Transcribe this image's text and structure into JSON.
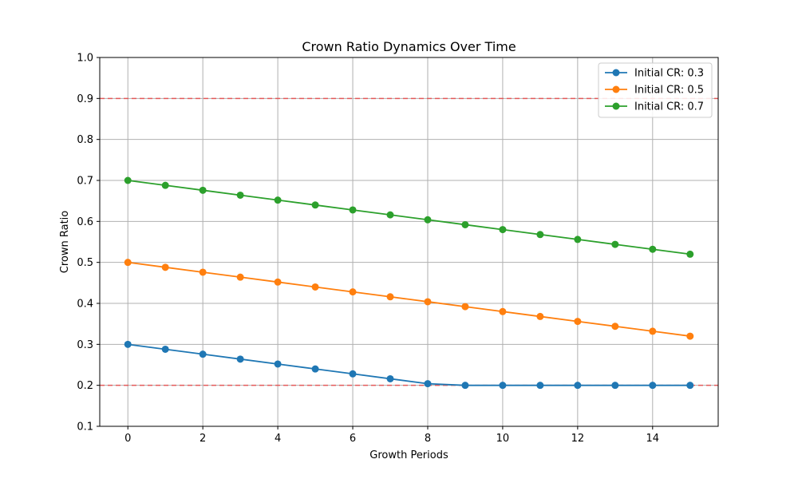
{
  "chart_data": {
    "type": "line",
    "title": "Crown Ratio Dynamics Over Time",
    "xlabel": "Growth Periods",
    "ylabel": "Crown Ratio",
    "xlim": [
      -0.75,
      15.75
    ],
    "ylim": [
      0.1,
      1.0
    ],
    "xticks": [
      0,
      2,
      4,
      6,
      8,
      10,
      12,
      14
    ],
    "yticks": [
      0.1,
      0.2,
      0.3,
      0.4,
      0.5,
      0.6,
      0.7,
      0.8,
      0.9,
      1.0
    ],
    "grid": true,
    "legend_position": "top-right",
    "x": [
      0,
      1,
      2,
      3,
      4,
      5,
      6,
      7,
      8,
      9,
      10,
      11,
      12,
      13,
      14,
      15
    ],
    "series": [
      {
        "name": "Initial CR: 0.3",
        "color": "#1f77b4",
        "values": [
          0.3,
          0.288,
          0.276,
          0.264,
          0.252,
          0.24,
          0.228,
          0.216,
          0.204,
          0.2,
          0.2,
          0.2,
          0.2,
          0.2,
          0.2,
          0.2
        ]
      },
      {
        "name": "Initial CR: 0.5",
        "color": "#ff7f0e",
        "values": [
          0.5,
          0.488,
          0.476,
          0.464,
          0.452,
          0.44,
          0.428,
          0.416,
          0.404,
          0.392,
          0.38,
          0.368,
          0.356,
          0.344,
          0.332,
          0.32
        ]
      },
      {
        "name": "Initial CR: 0.7",
        "color": "#2ca02c",
        "values": [
          0.7,
          0.688,
          0.676,
          0.664,
          0.652,
          0.64,
          0.628,
          0.616,
          0.604,
          0.592,
          0.58,
          0.568,
          0.556,
          0.544,
          0.532,
          0.52
        ]
      }
    ],
    "reference_lines": [
      {
        "y": 0.9,
        "color": "#e8504f",
        "style": "dashed"
      },
      {
        "y": 0.2,
        "color": "#e8504f",
        "style": "dashed"
      }
    ]
  }
}
